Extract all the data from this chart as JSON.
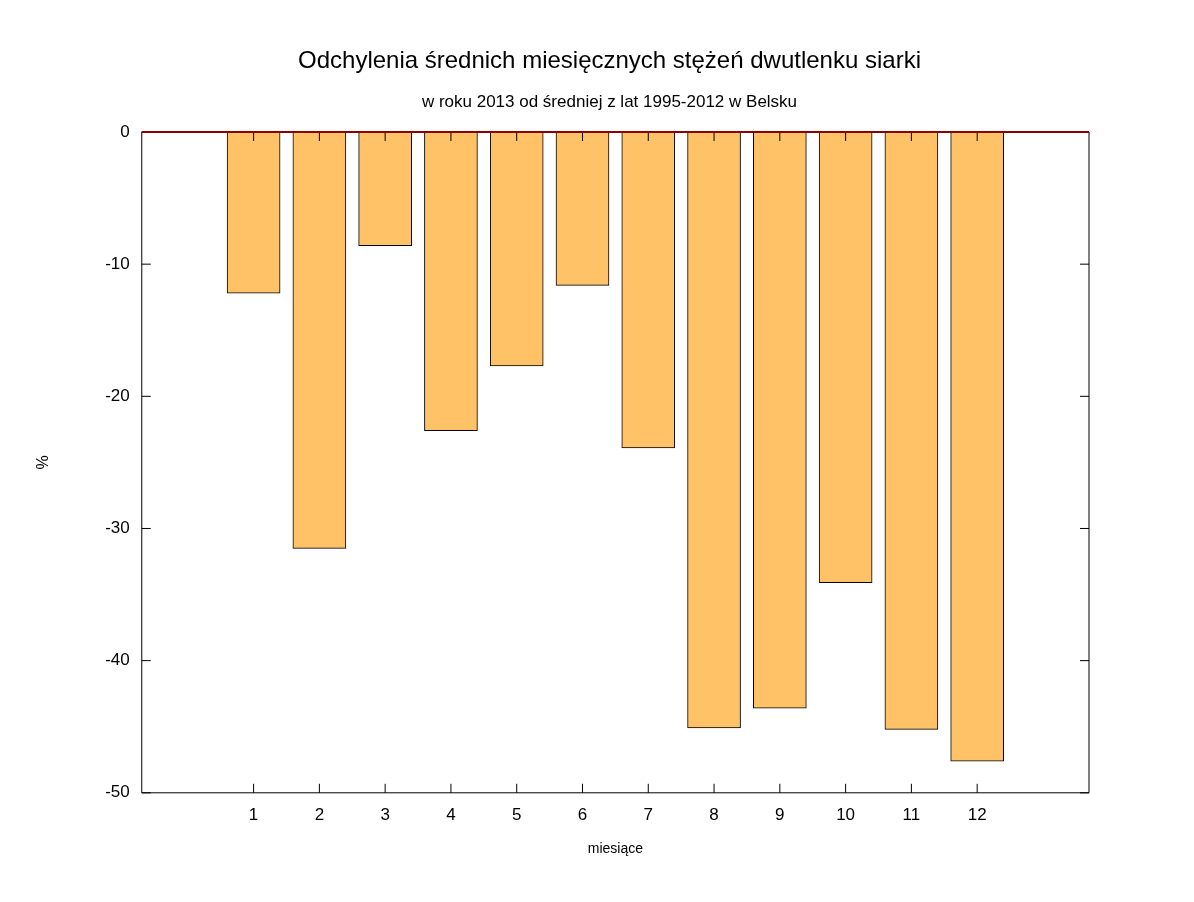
{
  "chart_data": {
    "type": "bar",
    "title": "Odchylenia średnich miesięcznych stężeń dwutlenku siarki",
    "subtitle": "w roku 2013 od średniej z lat 1995-2012 w Belsku",
    "xlabel": "miesiące",
    "ylabel": "%",
    "x": [
      1,
      2,
      3,
      4,
      5,
      6,
      7,
      8,
      9,
      10,
      11,
      12
    ],
    "values": [
      -12.2,
      -31.5,
      -8.6,
      -22.6,
      -17.7,
      -11.6,
      -23.9,
      -45.1,
      -43.6,
      -34.1,
      -45.2,
      -47.6
    ],
    "color": "#ffc266",
    "xlim": [
      -0.7,
      13.7
    ],
    "xticks": [
      1,
      2,
      3,
      4,
      5,
      6,
      7,
      8,
      9,
      10,
      11,
      12
    ],
    "ylim": [
      -50,
      0
    ],
    "yticks": [
      -50,
      -40,
      -30,
      -20,
      -10,
      0
    ],
    "ref_lines": [
      {
        "axis": "y",
        "value": 0,
        "color": "#8b0000"
      }
    ],
    "grid": false,
    "legend": false
  }
}
